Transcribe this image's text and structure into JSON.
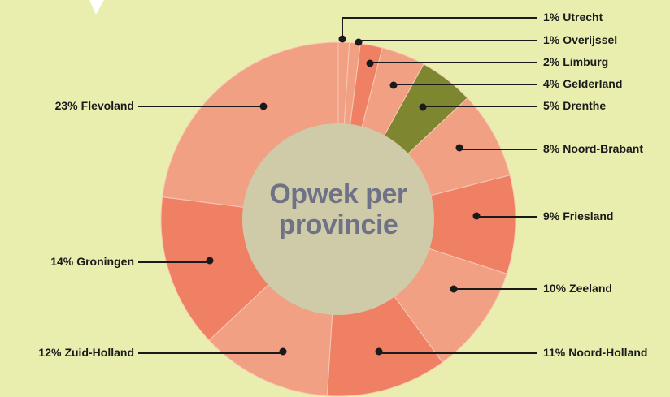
{
  "chart_data": {
    "type": "pie",
    "title": "Opwek per provincie",
    "categories": [
      "Utrecht",
      "Overijssel",
      "Limburg",
      "Gelderland",
      "Drenthe",
      "Noord-Brabant",
      "Friesland",
      "Zeeland",
      "Noord-Holland",
      "Zuid-Holland",
      "Groningen",
      "Flevoland"
    ],
    "values": [
      1,
      1,
      2,
      4,
      5,
      8,
      9,
      10,
      11,
      12,
      14,
      23
    ],
    "value_labels": [
      "1%",
      "1%",
      "2%",
      "4%",
      "5%",
      "8%",
      "9%",
      "10%",
      "11%",
      "12%",
      "14%",
      "23%"
    ],
    "colors": [
      "#f2a083",
      "#f2a083",
      "#ef8064",
      "#f2a083",
      "#7f8630",
      "#f2a083",
      "#ef8064",
      "#f2a083",
      "#ef8064",
      "#f2a083",
      "#ef8064",
      "#f2a083"
    ]
  }
}
